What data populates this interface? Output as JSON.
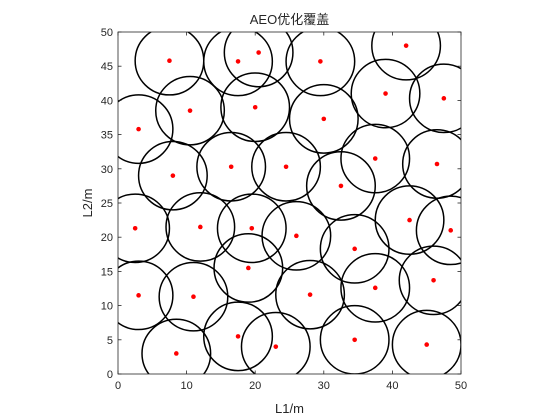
{
  "chart_data": {
    "type": "scatter",
    "title": "AEO优化覆盖",
    "xlabel": "L1/m",
    "ylabel": "L2/m",
    "xlim": [
      0,
      50
    ],
    "ylim": [
      0,
      50
    ],
    "xticks": [
      0,
      10,
      20,
      30,
      40,
      50
    ],
    "yticks": [
      0,
      5,
      10,
      15,
      20,
      25,
      30,
      35,
      40,
      45,
      50
    ],
    "grid": false,
    "legend": "none",
    "coverage_radius": 5,
    "colors": {
      "point": "#ff0000",
      "circle": "#000000",
      "axis": "#262626"
    },
    "series": [
      {
        "points": [
          {
            "x": 7.5,
            "y": 45.8
          },
          {
            "x": 17.5,
            "y": 45.7
          },
          {
            "x": 20.5,
            "y": 47.0
          },
          {
            "x": 29.5,
            "y": 45.7
          },
          {
            "x": 42.0,
            "y": 48.0
          },
          {
            "x": 10.5,
            "y": 38.5
          },
          {
            "x": 20.0,
            "y": 39.0
          },
          {
            "x": 30.0,
            "y": 37.3
          },
          {
            "x": 39.0,
            "y": 41.0
          },
          {
            "x": 47.5,
            "y": 40.3
          },
          {
            "x": 3.0,
            "y": 35.8
          },
          {
            "x": 8.0,
            "y": 29.0
          },
          {
            "x": 16.5,
            "y": 30.3
          },
          {
            "x": 24.5,
            "y": 30.3
          },
          {
            "x": 32.5,
            "y": 27.5
          },
          {
            "x": 37.5,
            "y": 31.5
          },
          {
            "x": 46.5,
            "y": 30.7
          },
          {
            "x": 2.5,
            "y": 21.3
          },
          {
            "x": 12.0,
            "y": 21.5
          },
          {
            "x": 19.5,
            "y": 21.3
          },
          {
            "x": 26.0,
            "y": 20.2
          },
          {
            "x": 34.5,
            "y": 18.3
          },
          {
            "x": 42.5,
            "y": 22.5
          },
          {
            "x": 48.5,
            "y": 21.0
          },
          {
            "x": 19.0,
            "y": 15.5
          },
          {
            "x": 3.0,
            "y": 11.5
          },
          {
            "x": 11.0,
            "y": 11.3
          },
          {
            "x": 28.0,
            "y": 11.6
          },
          {
            "x": 37.5,
            "y": 12.6
          },
          {
            "x": 46.0,
            "y": 13.7
          },
          {
            "x": 17.5,
            "y": 5.5
          },
          {
            "x": 23.0,
            "y": 4.0
          },
          {
            "x": 34.5,
            "y": 5.0
          },
          {
            "x": 45.0,
            "y": 4.3
          },
          {
            "x": 8.5,
            "y": 3.0
          }
        ]
      }
    ]
  }
}
